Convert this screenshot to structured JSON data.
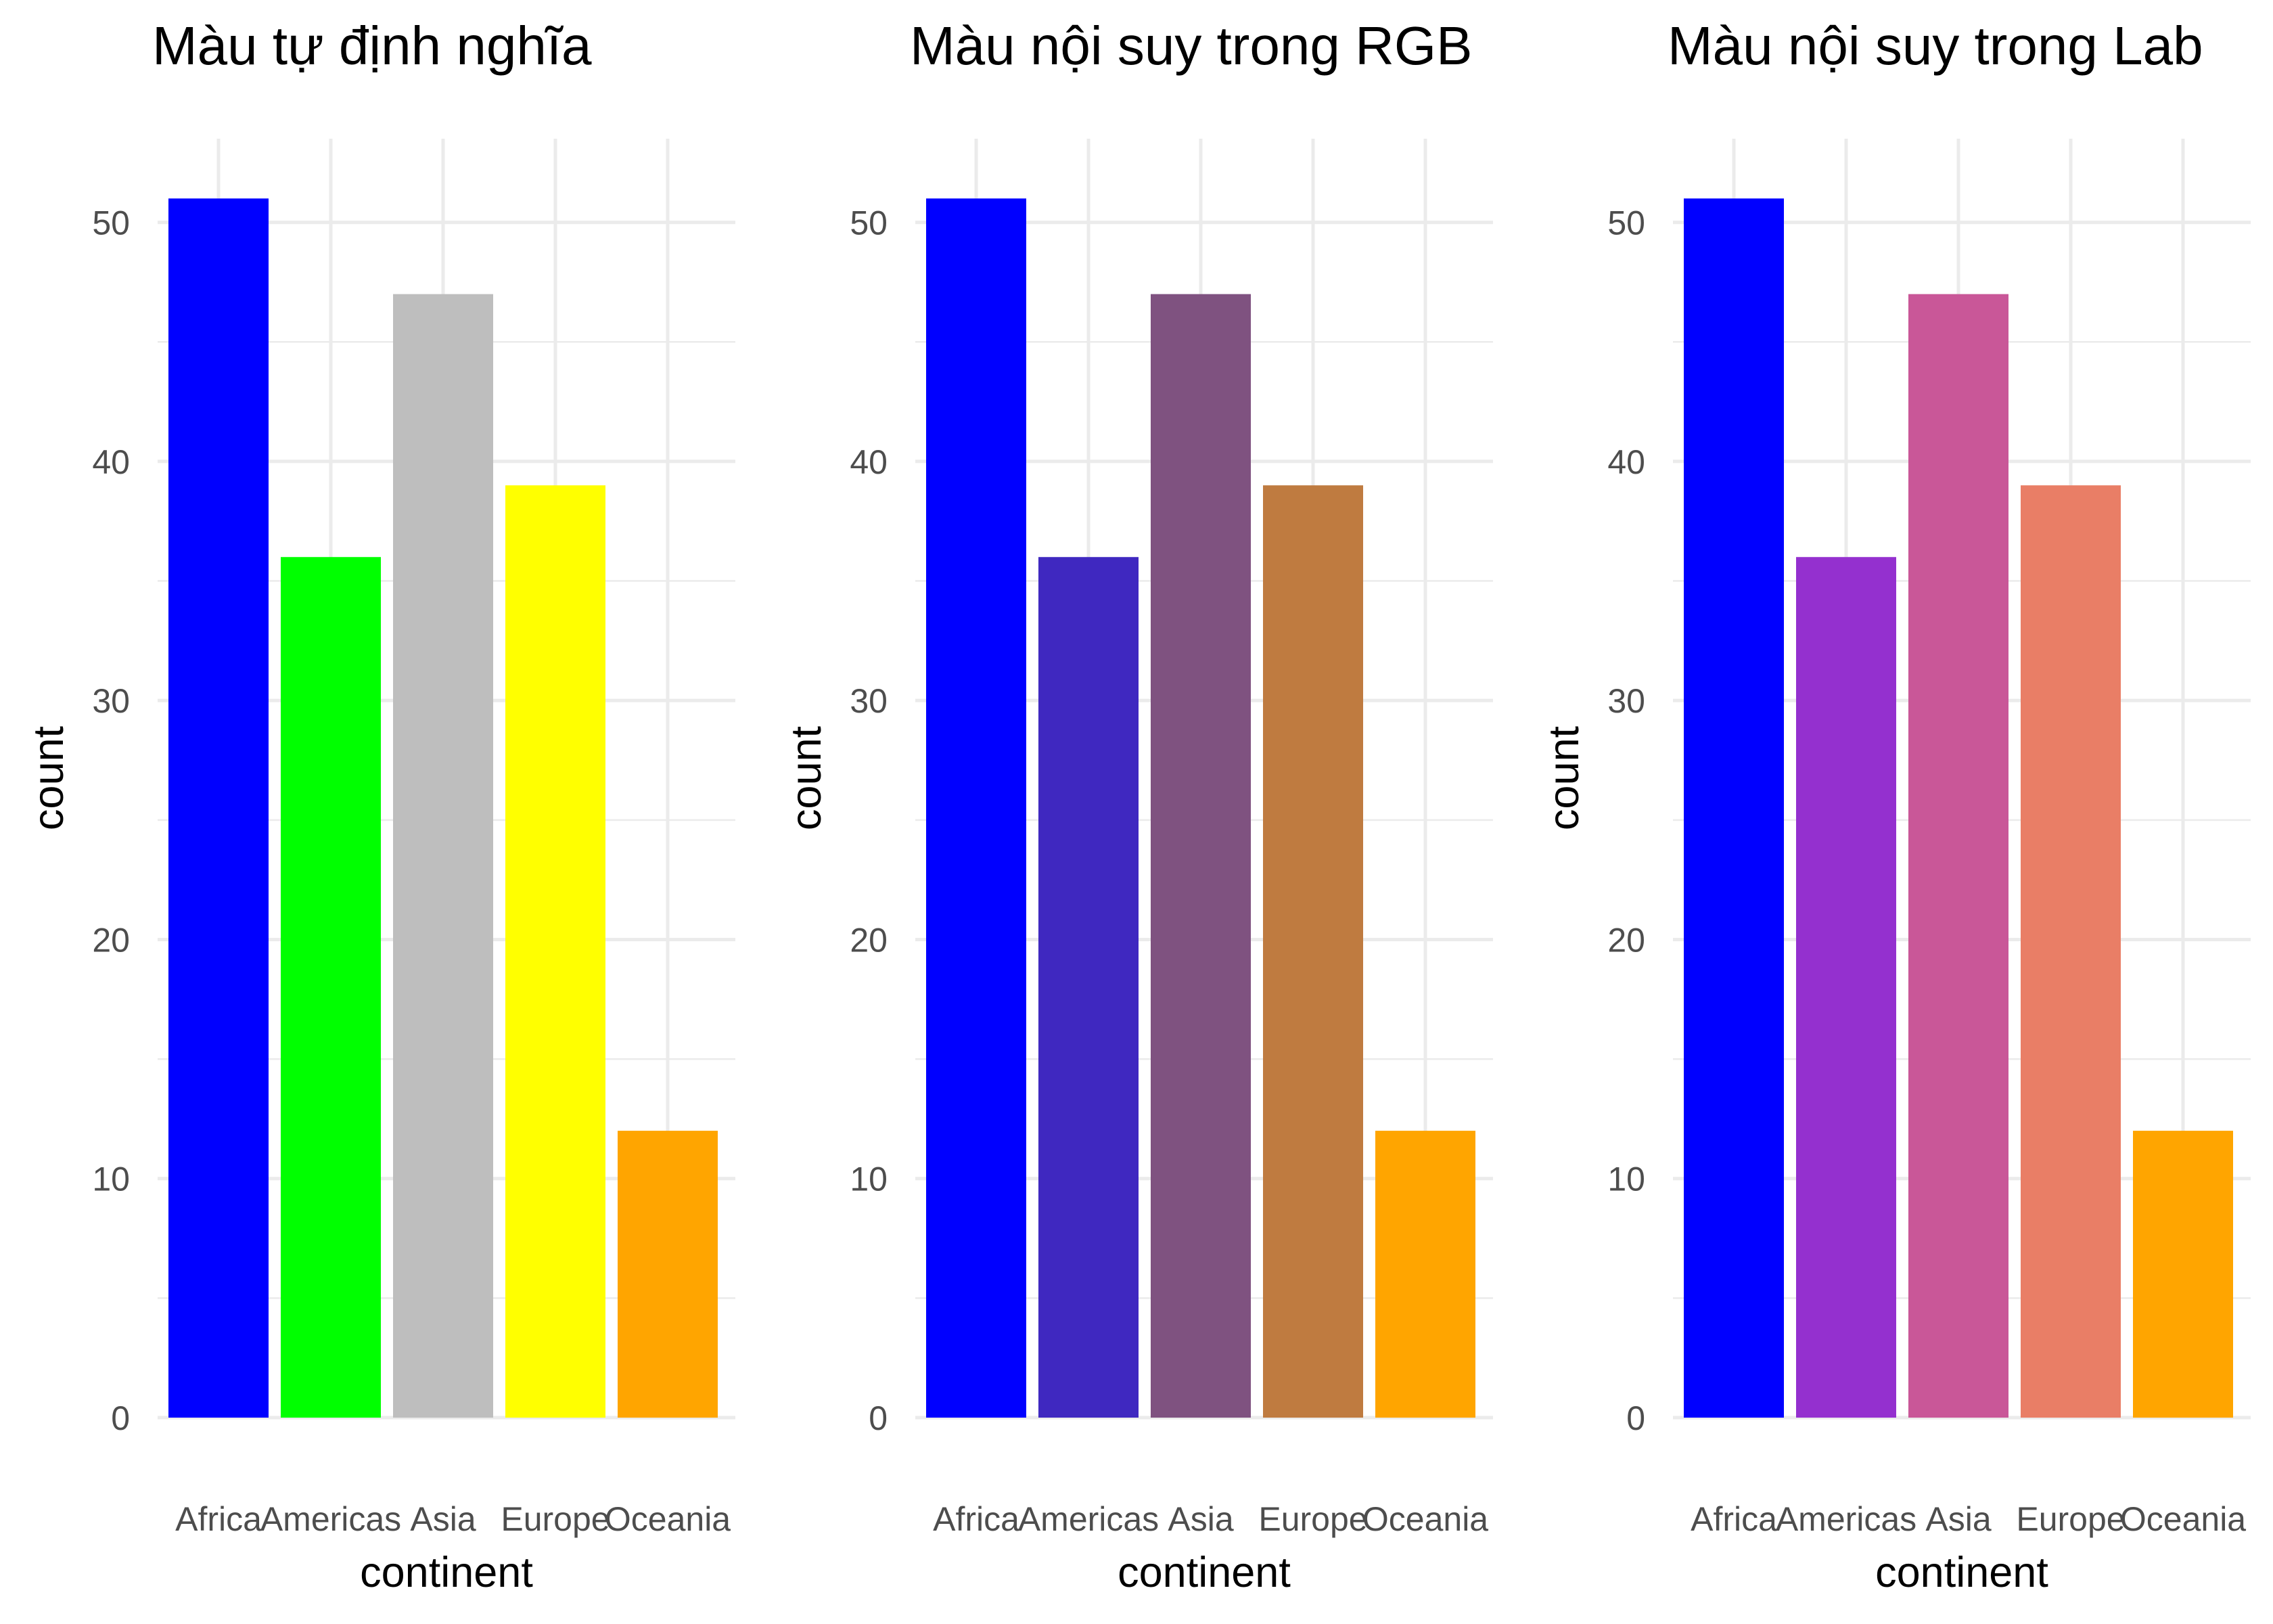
{
  "chart_data": [
    {
      "type": "bar",
      "title": "Màu tự định nghĩa",
      "xlabel": "continent",
      "ylabel": "count",
      "categories": [
        "Africa",
        "Americas",
        "Asia",
        "Europe",
        "Oceania"
      ],
      "values": [
        51,
        36,
        47,
        39,
        12
      ],
      "colors": [
        "#0000FF",
        "#00FF00",
        "#BEBEBE",
        "#FFFF00",
        "#FFA500"
      ],
      "ylim": [
        0,
        53.5
      ],
      "y_ticks": [
        0,
        10,
        20,
        30,
        40,
        50
      ],
      "grid": true,
      "legend": "none"
    },
    {
      "type": "bar",
      "title": "Màu nội suy trong RGB",
      "xlabel": "continent",
      "ylabel": "count",
      "categories": [
        "Africa",
        "Americas",
        "Asia",
        "Europe",
        "Oceania"
      ],
      "values": [
        51,
        36,
        47,
        39,
        12
      ],
      "colors": [
        "#0000FF",
        "#3F28C0",
        "#7F5280",
        "#BF7B40",
        "#FFA500"
      ],
      "ylim": [
        0,
        53.5
      ],
      "y_ticks": [
        0,
        10,
        20,
        30,
        40,
        50
      ],
      "grid": true,
      "legend": "none"
    },
    {
      "type": "bar",
      "title": "Màu nội suy trong Lab",
      "xlabel": "continent",
      "ylabel": "count",
      "categories": [
        "Africa",
        "Americas",
        "Asia",
        "Europe",
        "Oceania"
      ],
      "values": [
        51,
        36,
        47,
        39,
        12
      ],
      "colors": [
        "#0000FF",
        "#9430CF",
        "#C95798",
        "#E97E66",
        "#FFA500"
      ],
      "ylim": [
        0,
        53.5
      ],
      "y_ticks": [
        0,
        10,
        20,
        30,
        40,
        50
      ],
      "grid": true,
      "legend": "none"
    }
  ]
}
